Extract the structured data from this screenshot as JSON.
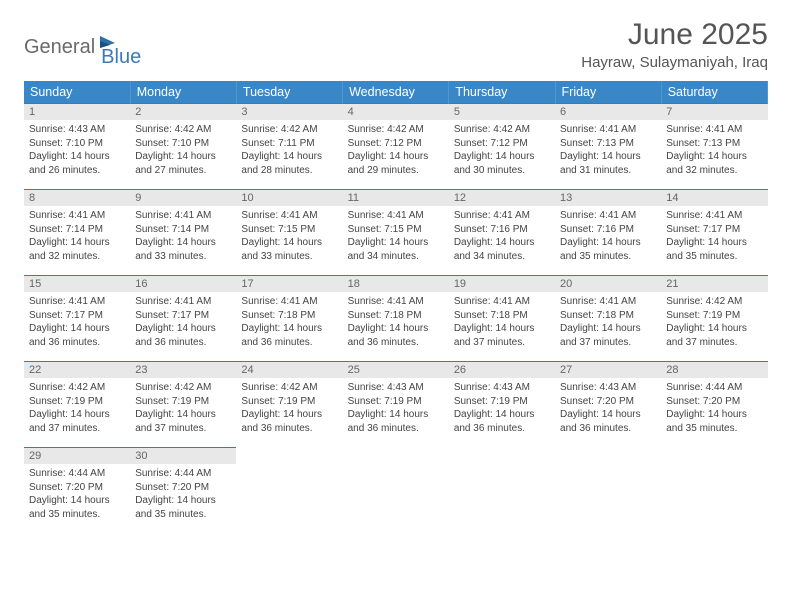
{
  "brand": {
    "part1": "General",
    "part2": "Blue"
  },
  "title": "June 2025",
  "location": "Hayraw, Sulaymaniyah, Iraq",
  "colors": {
    "header_bg": "#3a87c8",
    "header_text": "#ffffff",
    "daynum_bg": "#e8e8e8",
    "daynum_text": "#666666",
    "body_text": "#444444",
    "row_border": "#3a7ab8",
    "logo_gray": "#6a6a6a",
    "logo_blue": "#3a7ab8"
  },
  "fonts": {
    "title_size_pt": 22,
    "location_size_pt": 11,
    "th_size_pt": 9.5,
    "daynum_size_pt": 8,
    "daytext_size_pt": 7.5
  },
  "weekdays": [
    "Sunday",
    "Monday",
    "Tuesday",
    "Wednesday",
    "Thursday",
    "Friday",
    "Saturday"
  ],
  "days": [
    {
      "n": "1",
      "sr": "4:43 AM",
      "ss": "7:10 PM",
      "dl": "14 hours and 26 minutes."
    },
    {
      "n": "2",
      "sr": "4:42 AM",
      "ss": "7:10 PM",
      "dl": "14 hours and 27 minutes."
    },
    {
      "n": "3",
      "sr": "4:42 AM",
      "ss": "7:11 PM",
      "dl": "14 hours and 28 minutes."
    },
    {
      "n": "4",
      "sr": "4:42 AM",
      "ss": "7:12 PM",
      "dl": "14 hours and 29 minutes."
    },
    {
      "n": "5",
      "sr": "4:42 AM",
      "ss": "7:12 PM",
      "dl": "14 hours and 30 minutes."
    },
    {
      "n": "6",
      "sr": "4:41 AM",
      "ss": "7:13 PM",
      "dl": "14 hours and 31 minutes."
    },
    {
      "n": "7",
      "sr": "4:41 AM",
      "ss": "7:13 PM",
      "dl": "14 hours and 32 minutes."
    },
    {
      "n": "8",
      "sr": "4:41 AM",
      "ss": "7:14 PM",
      "dl": "14 hours and 32 minutes."
    },
    {
      "n": "9",
      "sr": "4:41 AM",
      "ss": "7:14 PM",
      "dl": "14 hours and 33 minutes."
    },
    {
      "n": "10",
      "sr": "4:41 AM",
      "ss": "7:15 PM",
      "dl": "14 hours and 33 minutes."
    },
    {
      "n": "11",
      "sr": "4:41 AM",
      "ss": "7:15 PM",
      "dl": "14 hours and 34 minutes."
    },
    {
      "n": "12",
      "sr": "4:41 AM",
      "ss": "7:16 PM",
      "dl": "14 hours and 34 minutes."
    },
    {
      "n": "13",
      "sr": "4:41 AM",
      "ss": "7:16 PM",
      "dl": "14 hours and 35 minutes."
    },
    {
      "n": "14",
      "sr": "4:41 AM",
      "ss": "7:17 PM",
      "dl": "14 hours and 35 minutes."
    },
    {
      "n": "15",
      "sr": "4:41 AM",
      "ss": "7:17 PM",
      "dl": "14 hours and 36 minutes."
    },
    {
      "n": "16",
      "sr": "4:41 AM",
      "ss": "7:17 PM",
      "dl": "14 hours and 36 minutes."
    },
    {
      "n": "17",
      "sr": "4:41 AM",
      "ss": "7:18 PM",
      "dl": "14 hours and 36 minutes."
    },
    {
      "n": "18",
      "sr": "4:41 AM",
      "ss": "7:18 PM",
      "dl": "14 hours and 36 minutes."
    },
    {
      "n": "19",
      "sr": "4:41 AM",
      "ss": "7:18 PM",
      "dl": "14 hours and 37 minutes."
    },
    {
      "n": "20",
      "sr": "4:41 AM",
      "ss": "7:18 PM",
      "dl": "14 hours and 37 minutes."
    },
    {
      "n": "21",
      "sr": "4:42 AM",
      "ss": "7:19 PM",
      "dl": "14 hours and 37 minutes."
    },
    {
      "n": "22",
      "sr": "4:42 AM",
      "ss": "7:19 PM",
      "dl": "14 hours and 37 minutes."
    },
    {
      "n": "23",
      "sr": "4:42 AM",
      "ss": "7:19 PM",
      "dl": "14 hours and 37 minutes."
    },
    {
      "n": "24",
      "sr": "4:42 AM",
      "ss": "7:19 PM",
      "dl": "14 hours and 36 minutes."
    },
    {
      "n": "25",
      "sr": "4:43 AM",
      "ss": "7:19 PM",
      "dl": "14 hours and 36 minutes."
    },
    {
      "n": "26",
      "sr": "4:43 AM",
      "ss": "7:19 PM",
      "dl": "14 hours and 36 minutes."
    },
    {
      "n": "27",
      "sr": "4:43 AM",
      "ss": "7:20 PM",
      "dl": "14 hours and 36 minutes."
    },
    {
      "n": "28",
      "sr": "4:44 AM",
      "ss": "7:20 PM",
      "dl": "14 hours and 35 minutes."
    },
    {
      "n": "29",
      "sr": "4:44 AM",
      "ss": "7:20 PM",
      "dl": "14 hours and 35 minutes."
    },
    {
      "n": "30",
      "sr": "4:44 AM",
      "ss": "7:20 PM",
      "dl": "14 hours and 35 minutes."
    }
  ],
  "labels": {
    "sunrise": "Sunrise:",
    "sunset": "Sunset:",
    "daylight": "Daylight:"
  }
}
